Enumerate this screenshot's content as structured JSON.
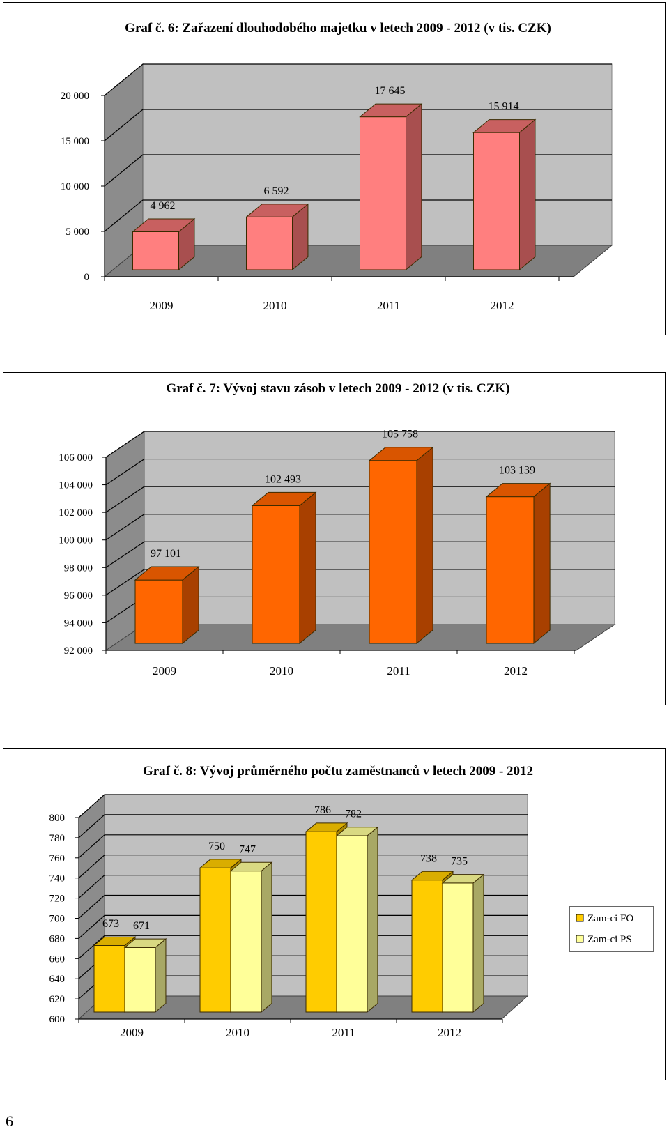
{
  "page_number": "6",
  "chart_data": [
    {
      "type": "bar",
      "title": "Graf č. 6: Zařazení dlouhodobého  majetku  v  letech 2009 - 2012 (v  tis. CZK)",
      "categories": [
        "2009",
        "2010",
        "2011",
        "2012"
      ],
      "values": [
        4962,
        6592,
        17645,
        15914
      ],
      "value_labels": [
        "4 962",
        "6 592",
        "17 645",
        "15 914"
      ],
      "ylim": [
        0,
        20000
      ],
      "yticks": [
        0,
        5000,
        10000,
        15000,
        20000
      ],
      "ytick_labels": [
        "0",
        "5 000",
        "10 000",
        "15 000",
        "20 000"
      ],
      "grid": true,
      "style": "3d",
      "colors": {
        "front": "#FF7F7F",
        "side": "#A84F4F",
        "top": "#C86060"
      }
    },
    {
      "type": "bar",
      "title": "Graf č. 7: Vývoj  stavu  zásob  v  letech 2009 - 2012 (v  tis. CZK)",
      "categories": [
        "2009",
        "2010",
        "2011",
        "2012"
      ],
      "values": [
        97101,
        102493,
        105758,
        103139
      ],
      "value_labels": [
        "97 101",
        "102 493",
        "105 758",
        "103 139"
      ],
      "ylim": [
        92000,
        106000
      ],
      "yticks": [
        92000,
        94000,
        96000,
        98000,
        100000,
        102000,
        104000,
        106000
      ],
      "ytick_labels": [
        "92 000",
        "94 000",
        "96 000",
        "98 000",
        "100 000",
        "102 000",
        "104 000",
        "106 000"
      ],
      "grid": true,
      "style": "3d",
      "colors": {
        "front": "#FF6600",
        "side": "#A84000",
        "top": "#D95500"
      }
    },
    {
      "type": "bar",
      "title": "Graf  č. 8: Vývoj  průměrného  počtu  zaměstnanců  v  letech 2009 - 2012",
      "categories": [
        "2009",
        "2010",
        "2011",
        "2012"
      ],
      "series": [
        {
          "name": "Zam-ci FO",
          "values": [
            673,
            750,
            786,
            738
          ],
          "value_labels": [
            "673",
            "750",
            "786",
            "738"
          ]
        },
        {
          "name": "Zam-ci PS",
          "values": [
            671,
            747,
            782,
            735
          ],
          "value_labels": [
            "671",
            "747",
            "782",
            "735"
          ]
        }
      ],
      "ylim": [
        600,
        800
      ],
      "yticks": [
        600,
        620,
        640,
        660,
        680,
        700,
        720,
        740,
        760,
        780,
        800
      ],
      "ytick_labels": [
        "600",
        "620",
        "640",
        "660",
        "680",
        "700",
        "720",
        "740",
        "760",
        "780",
        "800"
      ],
      "grid": true,
      "legend": "right",
      "style": "3d",
      "colors": [
        {
          "front": "#FFCC00",
          "side": "#A88600",
          "top": "#D9AD00"
        },
        {
          "front": "#FFFF99",
          "side": "#A8A865",
          "top": "#D9D982"
        }
      ]
    }
  ]
}
